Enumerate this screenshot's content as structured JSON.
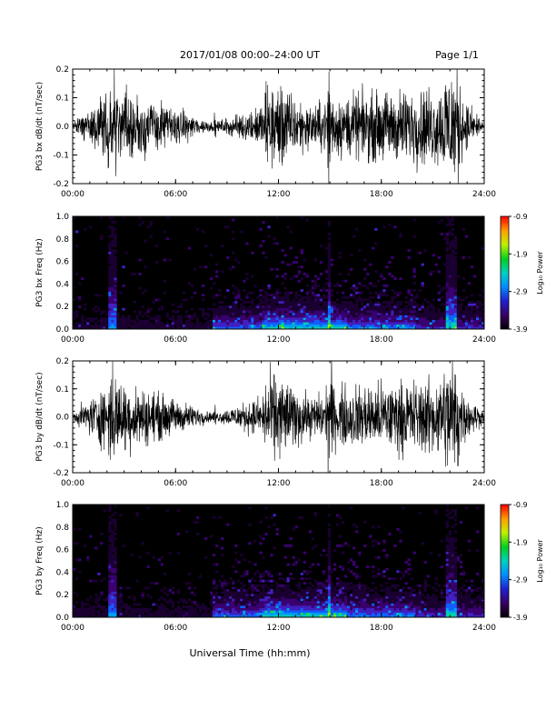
{
  "header": {
    "title": "2017/01/08  00:00–24:00 UT",
    "page": "Page 1/1"
  },
  "footer": {
    "xlabel": "Universal Time (hh:mm)"
  },
  "chart_data": [
    {
      "type": "line",
      "ylabel": "PG3 bx dB/dt (nT/sec)",
      "x_ticks": [
        "00:00",
        "06:00",
        "12:00",
        "18:00",
        "24:00"
      ],
      "xlim": [
        0,
        24
      ],
      "ylim": [
        -0.2,
        0.2
      ],
      "y_ticks": [
        "-0.2",
        "-0.1",
        "0.0",
        "0.1",
        "0.2"
      ],
      "series": [
        {
          "x": [
            0,
            2.4,
            8.2,
            11.0,
            12.0,
            14.0,
            15.0,
            22.0,
            24.0
          ],
          "amplitude": [
            0.02,
            0.2,
            0.02,
            0.1,
            0.2,
            0.1,
            0.15,
            0.2,
            0.03
          ]
        }
      ]
    },
    {
      "type": "heatmap",
      "ylabel": "PG3 bx Freq (Hz)",
      "x_ticks": [
        "00:00",
        "06:00",
        "12:00",
        "18:00",
        "24:00"
      ],
      "xlim": [
        0,
        24
      ],
      "ylim": [
        0,
        1.0
      ],
      "y_ticks": [
        "0.0",
        "0.2",
        "0.4",
        "0.6",
        "0.8",
        "1.0"
      ],
      "colorbar": {
        "label": "Log₁₀ Power",
        "ticks": [
          "-0.9",
          "-1.9",
          "-2.9",
          "-3.9"
        ],
        "range": [
          -3.9,
          -0.9
        ]
      }
    },
    {
      "type": "line",
      "ylabel": "PG3 by dB/dt (nT/sec)",
      "x_ticks": [
        "00:00",
        "06:00",
        "12:00",
        "18:00",
        "24:00"
      ],
      "xlim": [
        0,
        24
      ],
      "ylim": [
        -0.2,
        0.2
      ],
      "y_ticks": [
        "-0.2",
        "-0.1",
        "0.0",
        "0.1",
        "0.2"
      ],
      "series": [
        {
          "x": [
            0,
            2.4,
            8.2,
            11.0,
            12.0,
            14.0,
            15.0,
            22.0,
            24.0
          ],
          "amplitude": [
            0.02,
            0.2,
            0.02,
            0.1,
            0.2,
            0.1,
            0.15,
            0.2,
            0.03
          ]
        }
      ]
    },
    {
      "type": "heatmap",
      "ylabel": "PG3 by Freq (Hz)",
      "x_ticks": [
        "00:00",
        "06:00",
        "12:00",
        "18:00",
        "24:00"
      ],
      "xlim": [
        0,
        24
      ],
      "ylim": [
        0,
        1.0
      ],
      "y_ticks": [
        "0.0",
        "0.2",
        "0.4",
        "0.6",
        "0.8",
        "1.0"
      ],
      "colorbar": {
        "label": "Log₁₀ Power",
        "ticks": [
          "-0.9",
          "-1.9",
          "-2.9",
          "-3.9"
        ],
        "range": [
          -3.9,
          -0.9
        ]
      }
    }
  ]
}
